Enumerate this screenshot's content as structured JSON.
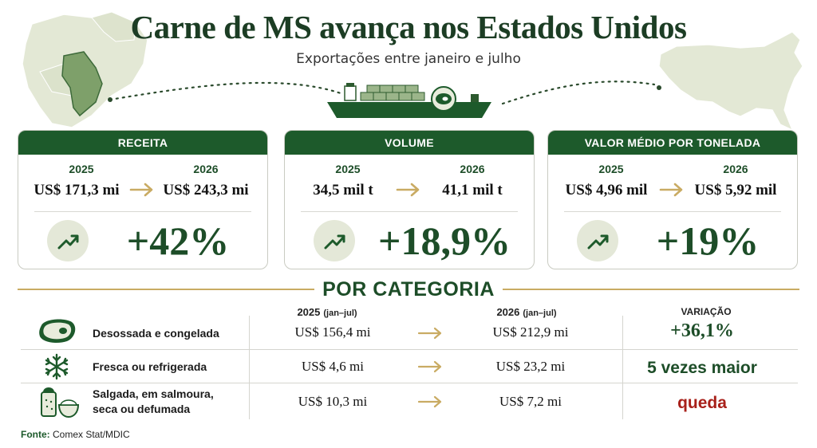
{
  "header": {
    "title": "Carne de MS avança nos Estados Unidos",
    "subtitle": "Exportações entre janeiro e julho"
  },
  "cards": [
    {
      "title": "RECEITA",
      "year_a": "2025",
      "value_a": "US$ 171,3 mi",
      "year_b": "2026",
      "value_b": "US$ 243,3 mi",
      "change": "+42%"
    },
    {
      "title": "VOLUME",
      "year_a": "2025",
      "value_a": "34,5 mil t",
      "year_b": "2026",
      "value_b": "41,1 mil t",
      "change": "+18,9%"
    },
    {
      "title": "VALOR MÉDIO POR TONELADA",
      "year_a": "2025",
      "value_a": "US$ 4,96 mil",
      "year_b": "2026",
      "value_b": "US$ 5,92 mil",
      "change": "+19%"
    }
  ],
  "section": {
    "title": "POR CATEGORIA",
    "col_2025": "2025",
    "col_2025_period": "(jan–jul)",
    "col_2026": "2026",
    "col_2026_period": "(jan–jul)",
    "col_variation": "VARIAÇÃO"
  },
  "categories": [
    {
      "name": "Desossada e congelada",
      "icon": "steak-icon",
      "v2025": "US$  156,4 mi",
      "v2026": "US$  212,9 mi",
      "variation": "+36,1%"
    },
    {
      "name": "Fresca ou refrigerada",
      "icon": "snowflake-icon",
      "v2025": "US$  4,6 mi",
      "v2026": "US$  23,2 mi",
      "variation": "5 vezes maior"
    },
    {
      "name_line1": "Salgada, em salmoura,",
      "name_line2": "seca ou defumada",
      "icon": "salt-icon",
      "v2025": "US$  10,3 mi",
      "v2026": "US$  7,2 mi",
      "variation": "queda"
    }
  ],
  "source": {
    "label": "Fonte:",
    "text": "Comex Stat/MDIC"
  },
  "colors": {
    "green_dark": "#1d5a2b",
    "green_text": "#1d4d28",
    "gold": "#c9ab63",
    "red": "#a8201a",
    "map_fill": "#e3e8d5"
  }
}
